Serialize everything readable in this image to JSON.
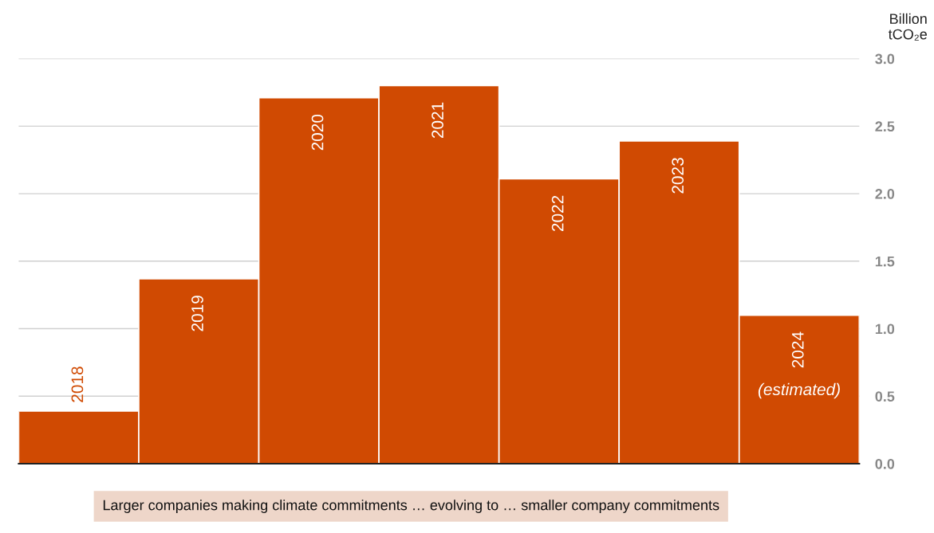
{
  "chart_data": {
    "type": "bar",
    "ylabel": "Billion tCO₂e",
    "categories": [
      "2018",
      "2019",
      "2020",
      "2021",
      "2022",
      "2023",
      "2024"
    ],
    "values": [
      0.39,
      1.37,
      2.71,
      2.8,
      2.11,
      2.39,
      1.1
    ],
    "color": "#d04a02",
    "ylim": [
      0,
      3.0
    ],
    "yticks": [
      {
        "value": 0,
        "label": "0.0"
      },
      0.5,
      {
        "value": 1,
        "label": "1.0"
      },
      1.5,
      {
        "value": 2,
        "label": "2.0"
      },
      2.5,
      {
        "value": 3,
        "label": "3.0"
      }
    ],
    "grid": "y",
    "legend": false,
    "tick_labels": "y",
    "annotations": [
      "(estimated)",
      "Larger companies making climate commitments … evolving to … smaller company commitments"
    ]
  }
}
